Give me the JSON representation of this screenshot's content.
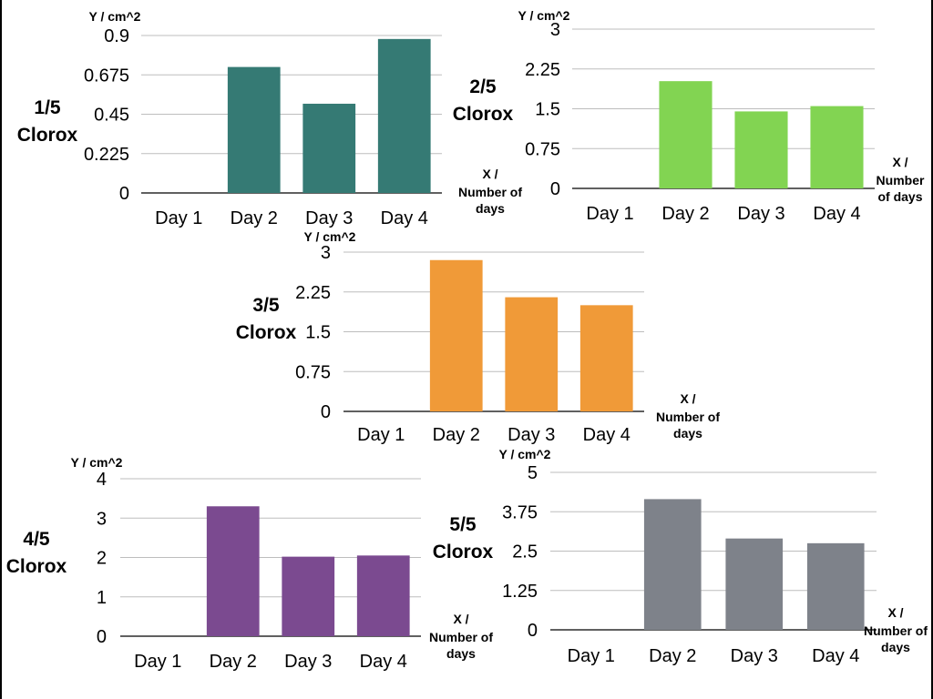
{
  "chart_data": [
    {
      "type": "bar",
      "title": "1/5 Clorox",
      "title_lines": [
        "1/5",
        "Clorox"
      ],
      "ylabel": "Y / cm^2",
      "xlabel_lines": [
        "X /",
        "Number of",
        "days"
      ],
      "categories": [
        "Day 1",
        "Day 2",
        "Day 3",
        "Day 4"
      ],
      "values": [
        0,
        0.72,
        0.51,
        0.88
      ],
      "yticks": [
        "0",
        "0.225",
        "0.45",
        "0.675",
        "0.9"
      ],
      "ylim": [
        0,
        0.9
      ],
      "grid": true,
      "color": "#357A74"
    },
    {
      "type": "bar",
      "title": "2/5 Clorox",
      "title_lines": [
        "2/5",
        "Clorox"
      ],
      "ylabel": "Y / cm^2",
      "xlabel_lines": [
        "X /",
        "Number",
        "of   days"
      ],
      "categories": [
        "Day 1",
        "Day 2",
        "Day 3",
        "Day 4"
      ],
      "values": [
        0,
        2.02,
        1.45,
        1.55
      ],
      "yticks": [
        "0",
        "0.75",
        "1.5",
        "2.25",
        "3"
      ],
      "ylim": [
        0,
        3
      ],
      "grid": true,
      "color": "#82D452"
    },
    {
      "type": "bar",
      "title": "3/5 Clorox",
      "title_lines": [
        "3/5",
        "Clorox"
      ],
      "ylabel": "Y / cm^2",
      "xlabel_lines": [
        "X /",
        "Number of",
        "days"
      ],
      "categories": [
        "Day 1",
        "Day 2",
        "Day 3",
        "Day 4"
      ],
      "values": [
        0,
        2.85,
        2.15,
        2.0
      ],
      "yticks": [
        "0",
        "0.75",
        "1.5",
        "2.25",
        "3"
      ],
      "ylim": [
        0,
        3
      ],
      "grid": true,
      "color": "#F09A38"
    },
    {
      "type": "bar",
      "title": "4/5 Clorox",
      "title_lines": [
        "4/5",
        "Clorox"
      ],
      "ylabel": "Y / cm^2",
      "xlabel_lines": [
        "X /",
        "Number of",
        "days"
      ],
      "categories": [
        "Day 1",
        "Day 2",
        "Day 3",
        "Day 4"
      ],
      "values": [
        0,
        3.3,
        2.02,
        2.05
      ],
      "yticks": [
        "0",
        "1",
        "2",
        "3",
        "4"
      ],
      "ylim": [
        0,
        4
      ],
      "grid": true,
      "color": "#7B4A90"
    },
    {
      "type": "bar",
      "title": "5/5 Clorox",
      "title_lines": [
        "5/5",
        "Clorox"
      ],
      "ylabel": "Y / cm^2",
      "xlabel_lines": [
        "X /",
        "Number of",
        "days"
      ],
      "categories": [
        "Day 1",
        "Day 2",
        "Day 3",
        "Day 4"
      ],
      "values": [
        0,
        4.15,
        2.9,
        2.75
      ],
      "yticks": [
        "0",
        "1.25",
        "2.5",
        "3.75",
        "5"
      ],
      "ylim": [
        0,
        5
      ],
      "grid": true,
      "color": "#7E828A"
    }
  ]
}
